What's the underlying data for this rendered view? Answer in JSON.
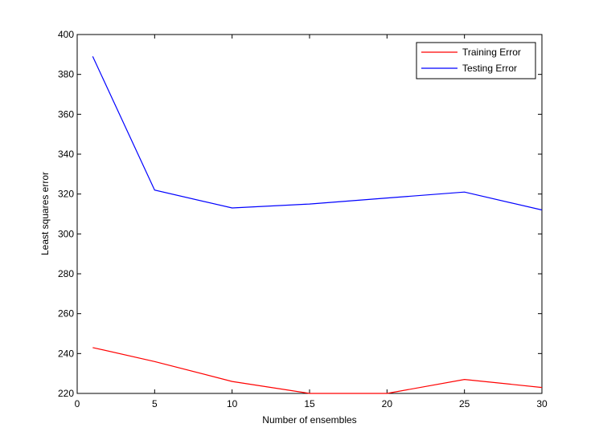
{
  "chart_data": {
    "type": "line",
    "title": "",
    "xlabel": "Number of ensembles",
    "ylabel": "Least squares error",
    "xlim": [
      0,
      30
    ],
    "ylim": [
      220,
      400
    ],
    "xticks": [
      0,
      5,
      10,
      15,
      20,
      25,
      30
    ],
    "yticks": [
      220,
      240,
      260,
      280,
      300,
      320,
      340,
      360,
      380,
      400
    ],
    "grid": false,
    "legend_position": "top-right",
    "series": [
      {
        "name": "Training Error",
        "color": "#ff0000",
        "x": [
          1,
          5,
          10,
          15,
          20,
          25,
          30
        ],
        "y": [
          243,
          236,
          226,
          220,
          220,
          227,
          223
        ]
      },
      {
        "name": "Testing Error",
        "color": "#0000ff",
        "x": [
          1,
          5,
          10,
          15,
          20,
          25,
          30
        ],
        "y": [
          389,
          322,
          313,
          315,
          318,
          321,
          312
        ]
      }
    ]
  }
}
